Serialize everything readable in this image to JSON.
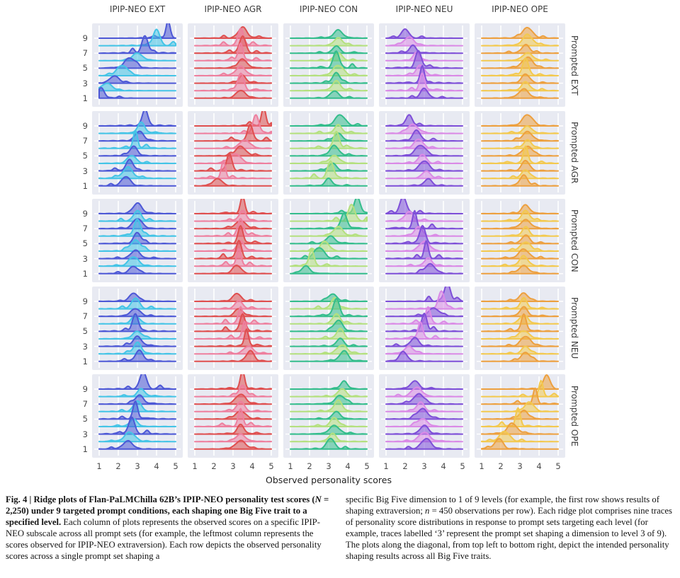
{
  "figure_label": "Fig. 4",
  "caption": {
    "left_bold_1": "Fig. 4 | Ridge plots of Flan-PaLMChilla 62B’s IPIP-NEO personality test scores (",
    "left_bold_N": "N",
    "left_bold_2": " = 2,250) under 9 targeted prompt conditions, each shaping one Big Five trait to a specified level.",
    "left_text": " Each column of plots represents the observed scores on a specific IPIP-NEO subscale across all prompt sets (for example, the leftmost column represents the scores observed for IPIP-NEO extraversion). Each row depicts the observed personality scores across a single prompt set shaping a",
    "right_1": "specific Big Five dimension to 1 of 9 levels (for example, the first row shows results of shaping extraversion; ",
    "right_n": "n",
    "right_2": " = 450 observations per row). Each ridge plot comprises nine traces of personality score distributions in response to prompt sets targeting each level (for example, traces labelled ‘3’ represent the prompt set shaping a dimension to level 3 of 9). The plots along the diagonal, from top left to bottom right, depict the intended personality shaping results across all Big Five traits."
  },
  "chart_data": {
    "type": "ridgeline-grid",
    "title": "",
    "xlabel": "Observed personality scores",
    "x_range": [
      1,
      5
    ],
    "x_ticks": [
      1,
      2,
      3,
      4,
      5
    ],
    "y_tick_labels": [
      9,
      7,
      5,
      3,
      1
    ],
    "traces_per_panel": 9,
    "columns": [
      "IPIP-NEO EXT",
      "IPIP-NEO AGR",
      "IPIP-NEO CON",
      "IPIP-NEO NEU",
      "IPIP-NEO OPE"
    ],
    "rows": [
      "Prompted EXT",
      "Prompted AGR",
      "Prompted CON",
      "Prompted NEU",
      "Prompted OPE"
    ],
    "palette": [
      {
        "dark": "#4d58d6",
        "light": "#44c4e6"
      },
      {
        "dark": "#df4f4f",
        "light": "#ee7f9e"
      },
      {
        "dark": "#34bd8c",
        "light": "#b4e07e"
      },
      {
        "dark": "#7e4fd8",
        "light": "#da8ae6"
      },
      {
        "dark": "#eda03f",
        "light": "#f3c94f"
      }
    ],
    "layout": {
      "panel_bg": "#e8eaf2",
      "grid_color": "#ffffff",
      "grid": true,
      "legend": false
    },
    "panels": [
      {
        "row": "Prompted EXT",
        "col": "IPIP-NEO EXT",
        "shift": true,
        "peaks_by_level": [
          1.1,
          1.4,
          1.8,
          2.2,
          2.6,
          3.0,
          3.4,
          4.0,
          4.6
        ]
      },
      {
        "row": "Prompted EXT",
        "col": "IPIP-NEO AGR",
        "shift": false,
        "peaks_by_level": [
          3.4,
          3.4,
          3.5,
          3.4,
          3.5,
          3.4,
          3.5,
          3.4,
          3.5
        ]
      },
      {
        "row": "Prompted EXT",
        "col": "IPIP-NEO CON",
        "shift": false,
        "peaks_by_level": [
          3.3,
          3.4,
          3.4,
          3.5,
          3.4,
          3.5,
          3.4,
          3.5,
          3.5
        ]
      },
      {
        "row": "Prompted EXT",
        "col": "IPIP-NEO NEU",
        "shift": false,
        "peaks_by_level": [
          3.0,
          2.9,
          2.9,
          2.8,
          2.7,
          2.6,
          2.4,
          2.2,
          2.0
        ]
      },
      {
        "row": "Prompted EXT",
        "col": "IPIP-NEO OPE",
        "shift": false,
        "peaks_by_level": [
          3.2,
          3.3,
          3.3,
          3.3,
          3.4,
          3.4,
          3.3,
          3.4,
          3.4
        ]
      },
      {
        "row": "Prompted AGR",
        "col": "IPIP-NEO EXT",
        "shift": false,
        "peaks_by_level": [
          2.4,
          2.5,
          2.6,
          2.7,
          2.8,
          2.9,
          3.1,
          3.2,
          3.4
        ]
      },
      {
        "row": "Prompted AGR",
        "col": "IPIP-NEO AGR",
        "shift": true,
        "peaks_by_level": [
          2.2,
          2.5,
          2.8,
          3.1,
          3.4,
          3.6,
          3.9,
          4.2,
          4.6
        ]
      },
      {
        "row": "Prompted AGR",
        "col": "IPIP-NEO CON",
        "shift": false,
        "peaks_by_level": [
          3.0,
          3.1,
          3.2,
          3.3,
          3.3,
          3.4,
          3.5,
          3.5,
          3.6
        ]
      },
      {
        "row": "Prompted AGR",
        "col": "IPIP-NEO NEU",
        "shift": false,
        "peaks_by_level": [
          3.2,
          3.1,
          3.0,
          2.9,
          2.8,
          2.7,
          2.6,
          2.4,
          2.2
        ]
      },
      {
        "row": "Prompted AGR",
        "col": "IPIP-NEO OPE",
        "shift": false,
        "peaks_by_level": [
          3.2,
          3.3,
          3.3,
          3.3,
          3.4,
          3.4,
          3.4,
          3.4,
          3.4
        ]
      },
      {
        "row": "Prompted CON",
        "col": "IPIP-NEO EXT",
        "shift": false,
        "peaks_by_level": [
          2.8,
          2.8,
          2.9,
          2.9,
          3.0,
          3.0,
          3.0,
          3.0,
          3.0
        ]
      },
      {
        "row": "Prompted CON",
        "col": "IPIP-NEO AGR",
        "shift": false,
        "peaks_by_level": [
          3.2,
          3.3,
          3.3,
          3.4,
          3.4,
          3.4,
          3.4,
          3.5,
          3.5
        ]
      },
      {
        "row": "Prompted CON",
        "col": "IPIP-NEO CON",
        "shift": true,
        "peaks_by_level": [
          1.8,
          2.1,
          2.5,
          2.8,
          3.1,
          3.5,
          3.8,
          4.2,
          4.5
        ]
      },
      {
        "row": "Prompted CON",
        "col": "IPIP-NEO NEU",
        "shift": false,
        "peaks_by_level": [
          3.3,
          3.2,
          3.1,
          3.0,
          2.9,
          2.7,
          2.5,
          2.2,
          1.9
        ]
      },
      {
        "row": "Prompted CON",
        "col": "IPIP-NEO OPE",
        "shift": false,
        "peaks_by_level": [
          3.2,
          3.2,
          3.2,
          3.3,
          3.3,
          3.3,
          3.3,
          3.3,
          3.3
        ]
      },
      {
        "row": "Prompted NEU",
        "col": "IPIP-NEO EXT",
        "shift": false,
        "peaks_by_level": [
          3.1,
          3.0,
          3.0,
          3.0,
          2.9,
          2.9,
          2.9,
          2.9,
          2.8
        ]
      },
      {
        "row": "Prompted NEU",
        "col": "IPIP-NEO AGR",
        "shift": false,
        "peaks_by_level": [
          3.9,
          3.8,
          3.7,
          3.6,
          3.5,
          3.4,
          3.3,
          3.3,
          3.2
        ]
      },
      {
        "row": "Prompted NEU",
        "col": "IPIP-NEO CON",
        "shift": false,
        "peaks_by_level": [
          3.8,
          3.7,
          3.6,
          3.6,
          3.5,
          3.4,
          3.4,
          3.3,
          3.2
        ]
      },
      {
        "row": "Prompted NEU",
        "col": "IPIP-NEO NEU",
        "shift": true,
        "peaks_by_level": [
          1.9,
          2.2,
          2.5,
          2.8,
          3.0,
          3.2,
          3.5,
          3.9,
          4.2
        ]
      },
      {
        "row": "Prompted NEU",
        "col": "IPIP-NEO OPE",
        "shift": false,
        "peaks_by_level": [
          3.3,
          3.3,
          3.3,
          3.2,
          3.2,
          3.2,
          3.2,
          3.2,
          3.2
        ]
      },
      {
        "row": "Prompted OPE",
        "col": "IPIP-NEO EXT",
        "shift": false,
        "peaks_by_level": [
          2.5,
          2.6,
          2.7,
          2.8,
          2.9,
          3.0,
          3.1,
          3.2,
          3.3
        ]
      },
      {
        "row": "Prompted OPE",
        "col": "IPIP-NEO AGR",
        "shift": false,
        "peaks_by_level": [
          3.4,
          3.4,
          3.4,
          3.4,
          3.4,
          3.4,
          3.4,
          3.5,
          3.5
        ]
      },
      {
        "row": "Prompted OPE",
        "col": "IPIP-NEO CON",
        "shift": false,
        "peaks_by_level": [
          3.1,
          3.2,
          3.3,
          3.3,
          3.4,
          3.5,
          3.6,
          3.7,
          3.8
        ]
      },
      {
        "row": "Prompted OPE",
        "col": "IPIP-NEO NEU",
        "shift": false,
        "peaks_by_level": [
          3.1,
          3.0,
          3.0,
          2.9,
          2.9,
          2.8,
          2.7,
          2.6,
          2.5
        ]
      },
      {
        "row": "Prompted OPE",
        "col": "IPIP-NEO OPE",
        "shift": true,
        "peaks_by_level": [
          1.9,
          2.2,
          2.6,
          2.9,
          3.2,
          3.5,
          3.8,
          4.1,
          4.4
        ]
      }
    ]
  }
}
